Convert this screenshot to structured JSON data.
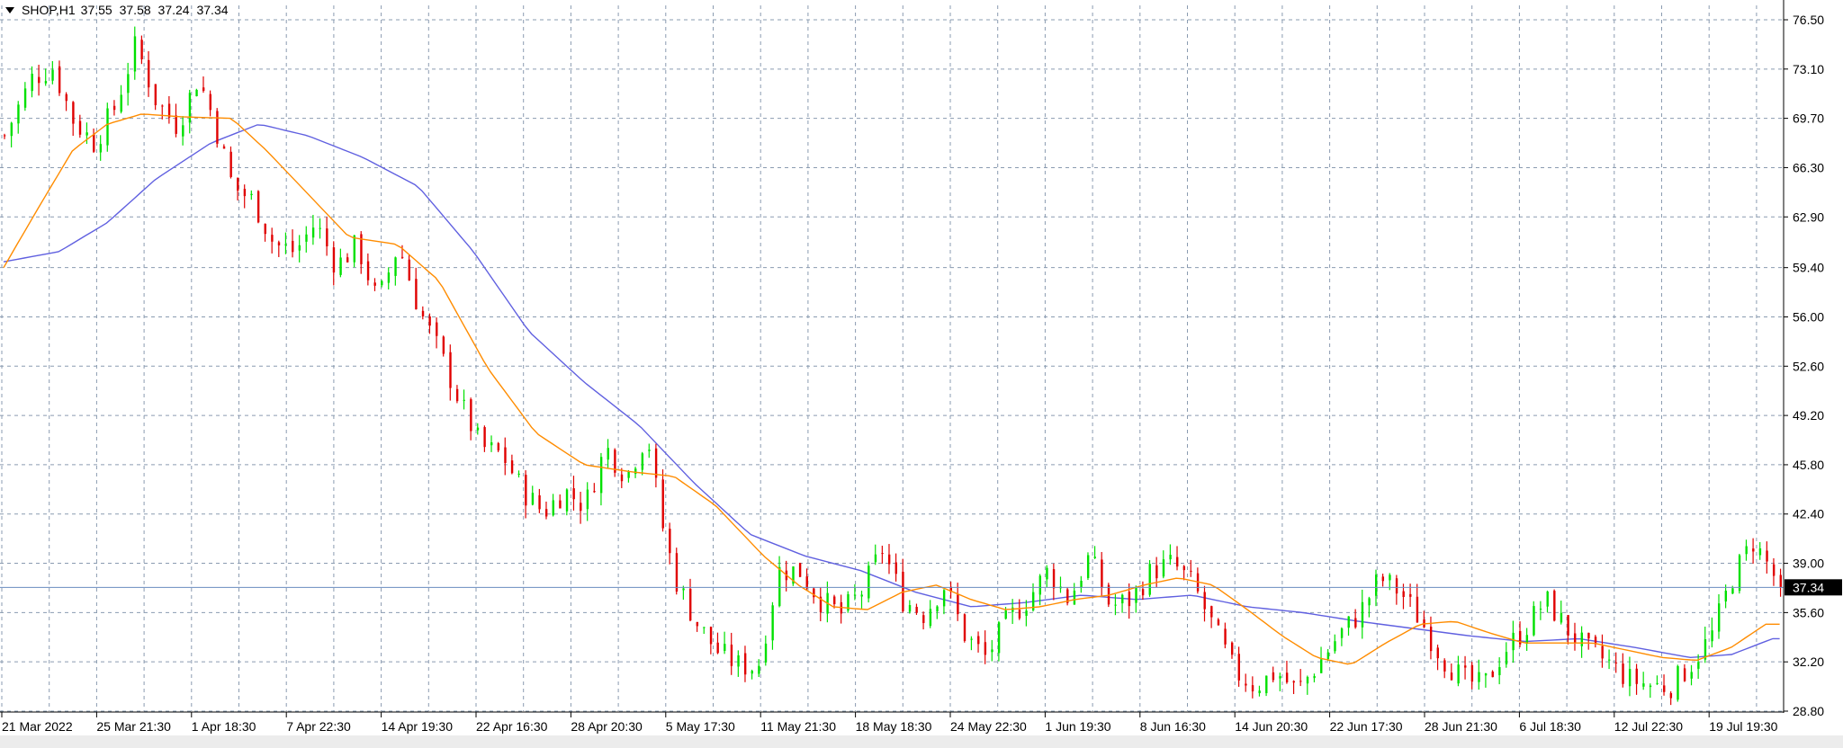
{
  "header": {
    "symbol": "SHOP,H1",
    "open": "37.55",
    "high": "37.58",
    "low": "37.24",
    "close": "37.34"
  },
  "price_tag": "37.34",
  "colors": {
    "background": "#ffffff",
    "grid": "#8a9bb0",
    "bull": "#00e000",
    "bear": "#e00000",
    "ma_fast": "#ff8c00",
    "ma_slow": "#6060e0",
    "current_line": "#6a8bbf"
  },
  "chart_data": {
    "type": "candlestick",
    "title": "SHOP,H1",
    "grid": true,
    "ylim": [
      28.8,
      76.5
    ],
    "y_ticks": [
      "76.50",
      "73.10",
      "69.70",
      "66.30",
      "62.90",
      "59.40",
      "56.00",
      "52.60",
      "49.20",
      "45.80",
      "42.40",
      "39.00",
      "35.60",
      "32.20",
      "28.80"
    ],
    "x_ticks": [
      "21 Mar 2022",
      "25 Mar 21:30",
      "1 Apr 18:30",
      "7 Apr 22:30",
      "14 Apr 19:30",
      "22 Apr 16:30",
      "28 Apr 20:30",
      "5 May 17:30",
      "11 May 21:30",
      "18 May 18:30",
      "24 May 22:30",
      "1 Jun 19:30",
      "8 Jun 16:30",
      "14 Jun 20:30",
      "22 Jun 17:30",
      "28 Jun 21:30",
      "6 Jul 18:30",
      "12 Jul 22:30",
      "19 Jul 19:30"
    ],
    "current_price": 37.34,
    "price_path": [
      [
        0,
        68.5
      ],
      [
        4,
        72.5
      ],
      [
        7,
        73.2
      ],
      [
        10,
        69.5
      ],
      [
        13,
        68.0
      ],
      [
        16,
        70.5
      ],
      [
        19,
        74.8
      ],
      [
        22,
        70.8
      ],
      [
        25,
        69.2
      ],
      [
        28,
        72.5
      ],
      [
        30,
        70.0
      ],
      [
        33,
        65.0
      ],
      [
        36,
        64.0
      ],
      [
        39,
        61.0
      ],
      [
        42,
        60.5
      ],
      [
        45,
        62.5
      ],
      [
        48,
        59.5
      ],
      [
        51,
        61.0
      ],
      [
        54,
        57.0
      ],
      [
        57,
        61.0
      ],
      [
        60,
        56.5
      ],
      [
        63,
        53.5
      ],
      [
        66,
        50.0
      ],
      [
        69,
        47.0
      ],
      [
        72,
        46.5
      ],
      [
        75,
        44.0
      ],
      [
        78,
        42.5
      ],
      [
        81,
        44.0
      ],
      [
        84,
        43.0
      ],
      [
        87,
        47.0
      ],
      [
        90,
        45.0
      ],
      [
        93,
        48.0
      ],
      [
        95,
        42.0
      ],
      [
        97,
        38.0
      ],
      [
        100,
        35.0
      ],
      [
        103,
        33.0
      ],
      [
        106,
        32.0
      ],
      [
        109,
        31.8
      ],
      [
        112,
        38.5
      ],
      [
        115,
        38.5
      ],
      [
        118,
        36.5
      ],
      [
        121,
        35.5
      ],
      [
        124,
        37.0
      ],
      [
        127,
        40.0
      ],
      [
        130,
        36.5
      ],
      [
        133,
        35.5
      ],
      [
        136,
        37.5
      ],
      [
        139,
        34.0
      ],
      [
        142,
        32.5
      ],
      [
        145,
        35.0
      ],
      [
        148,
        36.5
      ],
      [
        151,
        38.5
      ],
      [
        154,
        36.5
      ],
      [
        157,
        39.5
      ],
      [
        160,
        36.0
      ],
      [
        163,
        36.5
      ],
      [
        166,
        38.5
      ],
      [
        169,
        39.0
      ],
      [
        172,
        37.5
      ],
      [
        175,
        34.5
      ],
      [
        178,
        31.5
      ],
      [
        181,
        30.5
      ],
      [
        184,
        31.5
      ],
      [
        187,
        30.2
      ],
      [
        190,
        32.0
      ],
      [
        193,
        34.0
      ],
      [
        196,
        35.5
      ],
      [
        199,
        38.0
      ],
      [
        202,
        37.0
      ],
      [
        205,
        35.0
      ],
      [
        208,
        32.5
      ],
      [
        211,
        31.0
      ],
      [
        214,
        30.5
      ],
      [
        217,
        33.0
      ],
      [
        220,
        34.5
      ],
      [
        223,
        36.5
      ],
      [
        226,
        34.5
      ],
      [
        229,
        33.0
      ],
      [
        232,
        32.2
      ],
      [
        235,
        31.0
      ],
      [
        238,
        30.6
      ],
      [
        241,
        30.5
      ],
      [
        244,
        32.0
      ],
      [
        247,
        34.0
      ],
      [
        250,
        38.0
      ],
      [
        253,
        40.5
      ],
      [
        255,
        39.0
      ],
      [
        257,
        37.34
      ]
    ],
    "ma_fast": [
      [
        0,
        59.4
      ],
      [
        5,
        63.5
      ],
      [
        10,
        67.5
      ],
      [
        15,
        69.3
      ],
      [
        20,
        70.0
      ],
      [
        26,
        69.8
      ],
      [
        33,
        69.7
      ],
      [
        38,
        67.5
      ],
      [
        44,
        64.5
      ],
      [
        50,
        61.5
      ],
      [
        57,
        61.0
      ],
      [
        63,
        58.5
      ],
      [
        70,
        52.5
      ],
      [
        77,
        48.0
      ],
      [
        84,
        45.8
      ],
      [
        91,
        45.3
      ],
      [
        97,
        45.0
      ],
      [
        103,
        43.0
      ],
      [
        110,
        39.5
      ],
      [
        115,
        37.5
      ],
      [
        120,
        36.0
      ],
      [
        125,
        35.8
      ],
      [
        130,
        37.0
      ],
      [
        135,
        37.5
      ],
      [
        140,
        36.5
      ],
      [
        145,
        35.8
      ],
      [
        150,
        36.0
      ],
      [
        155,
        36.5
      ],
      [
        160,
        36.8
      ],
      [
        165,
        37.5
      ],
      [
        170,
        38.0
      ],
      [
        175,
        37.5
      ],
      [
        180,
        35.8
      ],
      [
        185,
        34.0
      ],
      [
        190,
        32.5
      ],
      [
        195,
        32.0
      ],
      [
        200,
        33.5
      ],
      [
        205,
        34.8
      ],
      [
        210,
        35.0
      ],
      [
        215,
        34.2
      ],
      [
        220,
        33.5
      ],
      [
        225,
        33.5
      ],
      [
        230,
        33.5
      ],
      [
        235,
        33.0
      ],
      [
        240,
        32.5
      ],
      [
        245,
        32.3
      ],
      [
        250,
        33.2
      ],
      [
        255,
        34.8
      ]
    ],
    "ma_slow": [
      [
        0,
        59.8
      ],
      [
        8,
        60.5
      ],
      [
        15,
        62.5
      ],
      [
        22,
        65.5
      ],
      [
        30,
        68.0
      ],
      [
        37,
        69.3
      ],
      [
        44,
        68.5
      ],
      [
        52,
        67.0
      ],
      [
        60,
        65.0
      ],
      [
        68,
        60.5
      ],
      [
        76,
        55.0
      ],
      [
        84,
        51.5
      ],
      [
        92,
        48.5
      ],
      [
        100,
        44.5
      ],
      [
        108,
        41.0
      ],
      [
        116,
        39.5
      ],
      [
        124,
        38.5
      ],
      [
        132,
        37.0
      ],
      [
        140,
        36.0
      ],
      [
        148,
        36.3
      ],
      [
        156,
        36.8
      ],
      [
        164,
        36.5
      ],
      [
        172,
        36.8
      ],
      [
        180,
        36.0
      ],
      [
        188,
        35.6
      ],
      [
        196,
        35.0
      ],
      [
        204,
        34.5
      ],
      [
        212,
        34.0
      ],
      [
        220,
        33.6
      ],
      [
        228,
        33.8
      ],
      [
        236,
        33.2
      ],
      [
        244,
        32.5
      ],
      [
        250,
        32.7
      ],
      [
        256,
        33.8
      ]
    ]
  }
}
